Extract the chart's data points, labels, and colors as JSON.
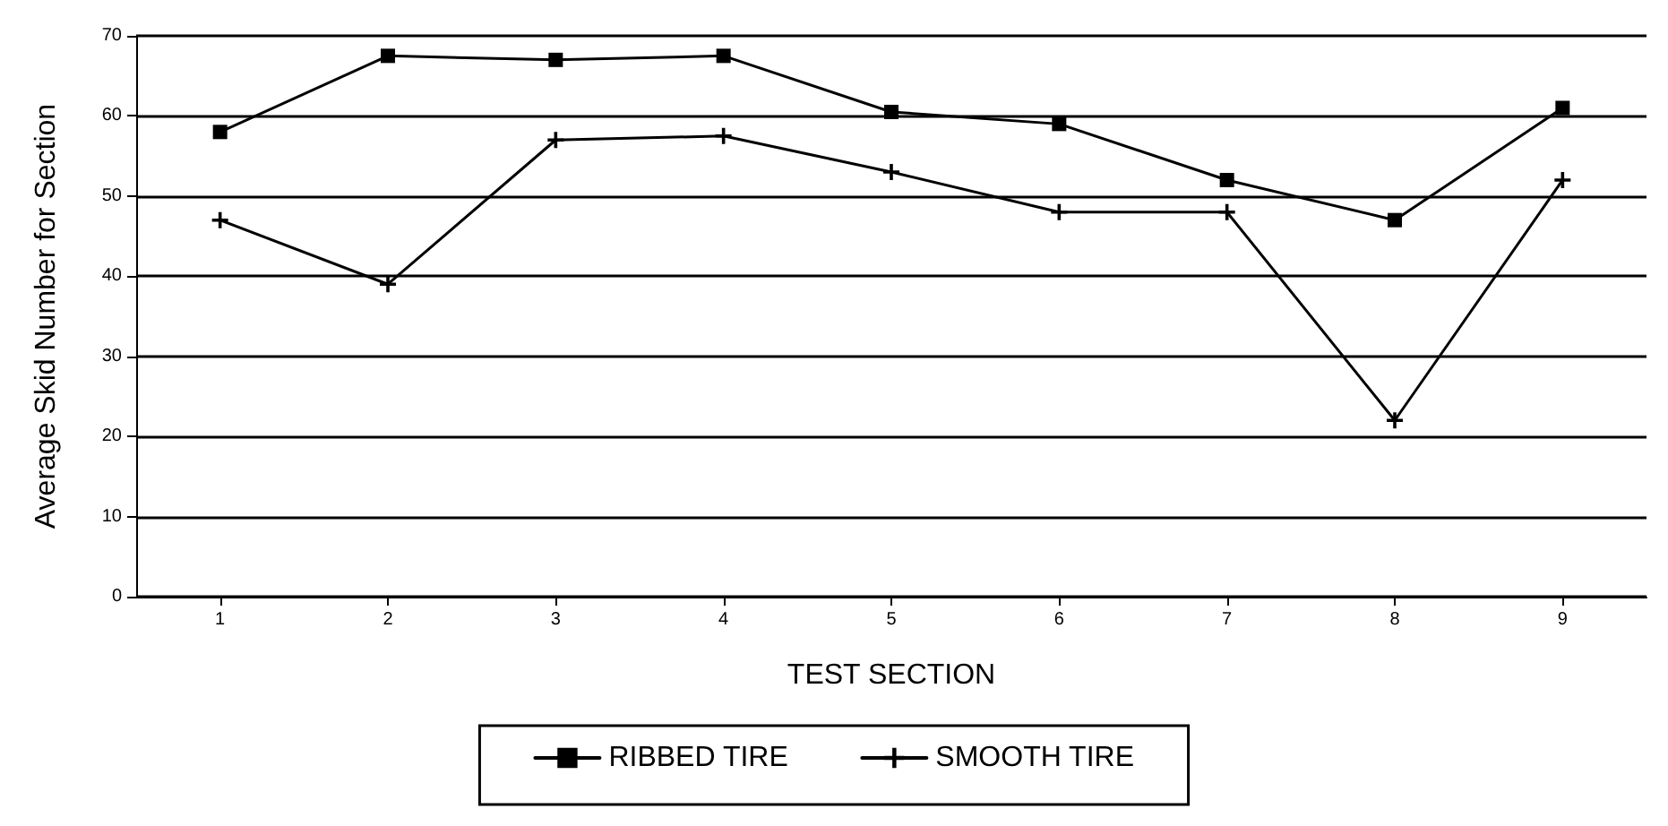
{
  "chart_data": {
    "type": "line",
    "xlabel": "TEST SECTION",
    "ylabel": "Average Skid Number for Section",
    "categories": [
      "1",
      "2",
      "3",
      "4",
      "5",
      "6",
      "7",
      "8",
      "9"
    ],
    "series": [
      {
        "name": "RIBBED TIRE",
        "color": "#000000",
        "marker": "square",
        "values": [
          58,
          67.5,
          67,
          67.5,
          60.5,
          59,
          52,
          47,
          61
        ]
      },
      {
        "name": "SMOOTH TIRE",
        "color": "#000000",
        "marker": "cross",
        "values": [
          47,
          39,
          57,
          57.5,
          53,
          48,
          48,
          22,
          52
        ]
      }
    ],
    "ylim": [
      0,
      70
    ],
    "yticks": [
      0,
      10,
      20,
      30,
      40,
      50,
      60,
      70
    ],
    "grid": "y",
    "legend": "bottom",
    "line_style": "solid"
  }
}
